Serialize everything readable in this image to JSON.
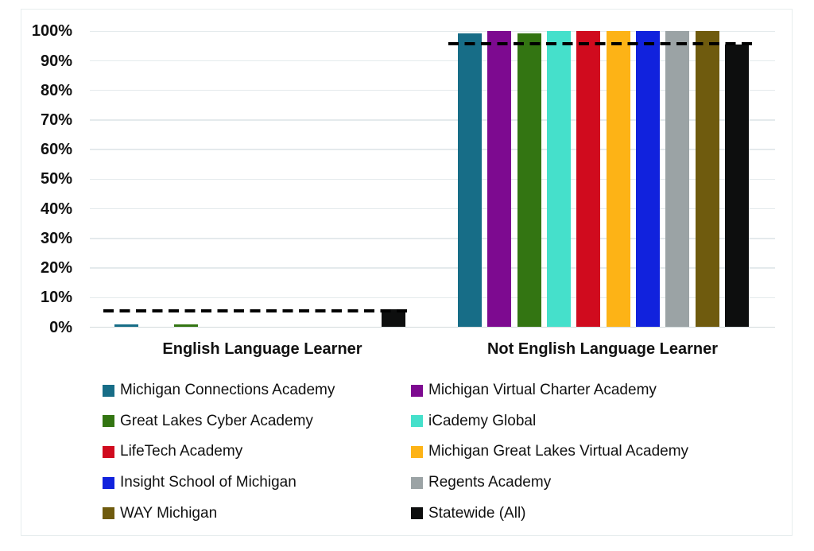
{
  "chart_data": {
    "type": "bar",
    "categories": [
      "English Language Learner",
      "Not English Language Learner"
    ],
    "yticks": [
      "0%",
      "10%",
      "20%",
      "30%",
      "40%",
      "50%",
      "60%",
      "70%",
      "80%",
      "90%",
      "100%"
    ],
    "ylim": [
      0,
      100
    ],
    "grid": true,
    "legend_position": "bottom",
    "series": [
      {
        "name": "Michigan Connections Academy",
        "color": "#176d87",
        "values": [
          1,
          99.4
        ]
      },
      {
        "name": "Michigan Virtual Charter Academy",
        "color": "#7d0a90",
        "values": [
          0,
          100
        ]
      },
      {
        "name": "Great Lakes Cyber Academy",
        "color": "#337512",
        "values": [
          1,
          99.4
        ]
      },
      {
        "name": "iCademy Global",
        "color": "#45e0cb",
        "values": [
          0,
          100
        ]
      },
      {
        "name": "LifeTech Academy",
        "color": "#d00b1e",
        "values": [
          0,
          100
        ]
      },
      {
        "name": "Michigan Great Lakes Virtual Academy",
        "color": "#fdb316",
        "values": [
          0,
          100
        ]
      },
      {
        "name": "Insight School of Michigan",
        "color": "#1122dd",
        "values": [
          0,
          100
        ]
      },
      {
        "name": "Regents Academy",
        "color": "#9ba3a5",
        "values": [
          0,
          100
        ]
      },
      {
        "name": "WAY Michigan",
        "color": "#6f5b0e",
        "values": [
          0,
          100
        ]
      },
      {
        "name": "Statewide (All)",
        "color": "#0d0e0e",
        "values": [
          6,
          95.4
        ]
      }
    ],
    "reference_lines": {
      "style": "dashed",
      "color": "#000000",
      "values": [
        5.5,
        95.7
      ]
    }
  }
}
